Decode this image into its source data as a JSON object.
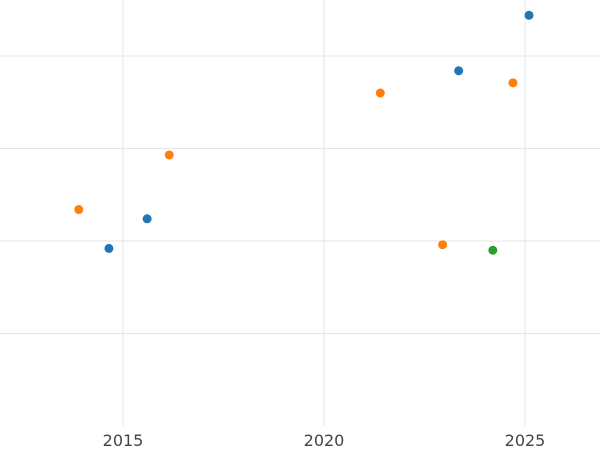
{
  "chart_data": {
    "type": "scatter",
    "title": "",
    "xlabel": "",
    "ylabel": "",
    "xlim": [
      2015.0,
      2025.2
    ],
    "ylim": [
      0,
      10
    ],
    "x_ticks": [
      2015,
      2020,
      2025
    ],
    "y_gridlines": [
      1,
      2,
      3,
      4,
      5
    ],
    "grid": true,
    "legend": "none",
    "series": [
      {
        "color": "#1f77b4",
        "points": [
          {
            "x": 2014.65,
            "y": 1.92
          },
          {
            "x": 2015.6,
            "y": 2.24
          },
          {
            "x": 2023.35,
            "y": 3.84
          },
          {
            "x": 2025.1,
            "y": 4.44
          }
        ]
      },
      {
        "color": "#ff7f0e",
        "points": [
          {
            "x": 2013.9,
            "y": 2.34
          },
          {
            "x": 2016.15,
            "y": 2.93
          },
          {
            "x": 2021.4,
            "y": 3.6
          },
          {
            "x": 2022.95,
            "y": 1.96
          },
          {
            "x": 2024.7,
            "y": 3.71
          }
        ]
      },
      {
        "color": "#2ca02c",
        "points": [
          {
            "x": 2024.2,
            "y": 1.9
          }
        ]
      }
    ]
  }
}
